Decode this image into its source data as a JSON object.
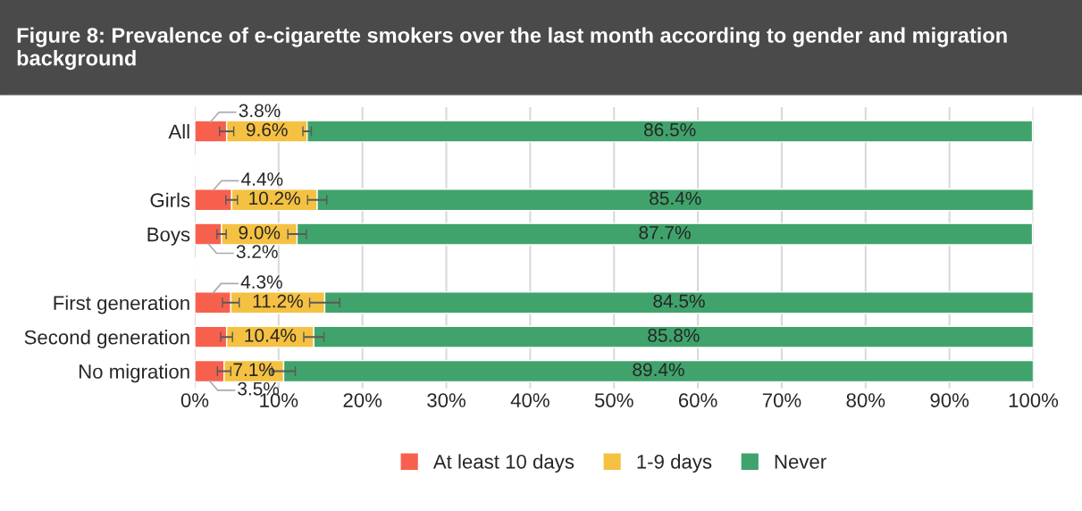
{
  "chart_data": {
    "type": "bar",
    "orientation": "horizontal",
    "stacked": true,
    "title": "Figure 8: Prevalence of e-cigarette smokers over the last month according to gender and migration background",
    "categories": [
      "All",
      null,
      "Girls",
      "Boys",
      null,
      "First generation",
      "Second generation",
      "No migration"
    ],
    "series": [
      {
        "name": "At least 10 days",
        "color": "#f8604e",
        "values": [
          3.8,
          null,
          4.4,
          3.2,
          null,
          4.3,
          3.8,
          3.5
        ],
        "errors": [
          0.85,
          null,
          0.7,
          0.55,
          null,
          1.0,
          0.7,
          0.8
        ],
        "value_labels": [
          "3.8%",
          null,
          "4.4%",
          "3.2%",
          null,
          "4.3%",
          null,
          "3.5%"
        ]
      },
      {
        "name": "1-9 days",
        "color": "#f5c142",
        "values": [
          9.6,
          null,
          10.2,
          9.0,
          null,
          11.2,
          10.4,
          7.1
        ],
        "errors": [
          0.5,
          null,
          1.15,
          1.1,
          null,
          1.8,
          1.2,
          1.4
        ],
        "value_labels": [
          "9.6%",
          null,
          "10.2%",
          "9.0%",
          null,
          "11.2%",
          "10.4%",
          "7.1%"
        ]
      },
      {
        "name": "Never",
        "color": "#40a36b",
        "values": [
          86.5,
          null,
          85.4,
          87.7,
          null,
          84.5,
          85.8,
          89.4
        ],
        "value_labels": [
          "86.5%",
          null,
          "85.4%",
          "87.7%",
          null,
          "84.5%",
          "85.8%",
          "89.4%"
        ]
      }
    ],
    "xlim": [
      0,
      100
    ],
    "xticks": [
      {
        "value": 0,
        "label": "0%"
      },
      {
        "value": 10,
        "label": "10%"
      },
      {
        "value": 20,
        "label": "20%"
      },
      {
        "value": 30,
        "label": "30%"
      },
      {
        "value": 40,
        "label": "40%"
      },
      {
        "value": 50,
        "label": "50%"
      },
      {
        "value": 60,
        "label": "60%"
      },
      {
        "value": 70,
        "label": "70%"
      },
      {
        "value": 80,
        "label": "80%"
      },
      {
        "value": 90,
        "label": "90%"
      },
      {
        "value": 100,
        "label": "100%"
      }
    ],
    "grid": "x",
    "legend": "bottom"
  }
}
